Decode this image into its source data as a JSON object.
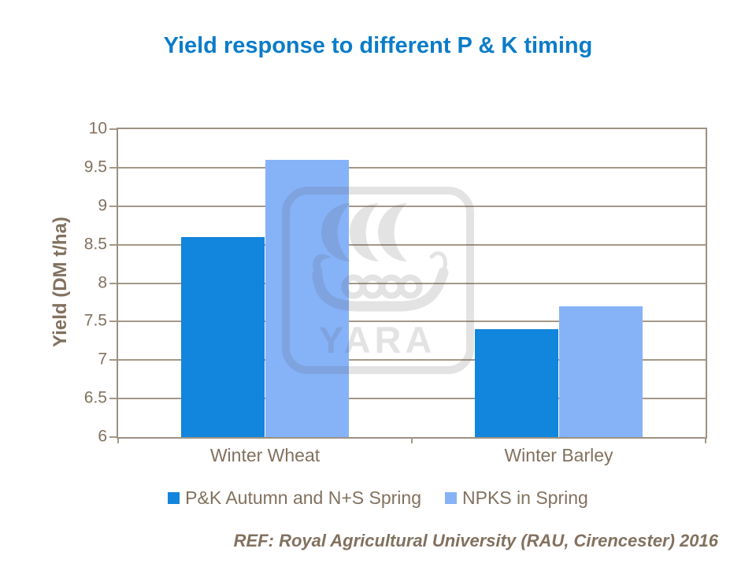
{
  "title": "Yield response to different P & K timing",
  "footer": {
    "ref_text": "REF: Royal Agricultural University (RAU, Cirencester) 2016"
  },
  "watermark": {
    "icon": "yara-viking-ship-logo",
    "text": "YARA"
  },
  "colors": {
    "title_color": "#0b7cc9",
    "text_color": "#82715f",
    "axis_color": "#9c9083",
    "grid_color": "#a59888",
    "watermark_color": "#5a5a5a"
  },
  "chart_data": {
    "type": "bar",
    "title": "Yield response to different P & K timing",
    "categories": [
      "Winter Wheat",
      "Winter Barley"
    ],
    "series": [
      {
        "name": "P&K Autumn and N+S Spring",
        "color": "#1285dd",
        "values": [
          8.6,
          7.4
        ]
      },
      {
        "name": "NPKS in Spring",
        "color": "#86b2f8",
        "values": [
          9.6,
          7.7
        ]
      }
    ],
    "xlabel": "",
    "ylabel": "Yield (DM t/ha)",
    "ylim": [
      6,
      10
    ],
    "yticks": [
      6,
      6.5,
      7,
      7.5,
      8,
      8.5,
      9,
      9.5,
      10
    ],
    "grid": true,
    "legend_position": "bottom",
    "bar_width_frac": 0.1427
  }
}
